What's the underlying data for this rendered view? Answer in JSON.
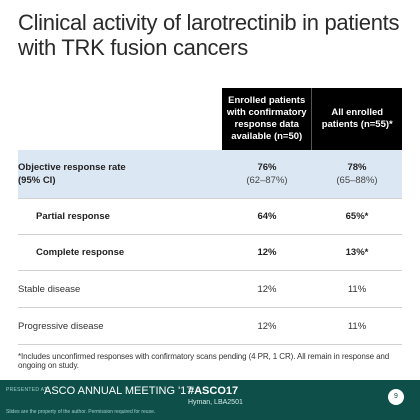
{
  "slide": {
    "title": "Clinical activity of larotrectinib in patients with TRK fusion cancers"
  },
  "table": {
    "columns": [
      "Enrolled patients with confirmatory response data available (n=50)",
      "All enrolled patients (n=55)*"
    ],
    "orr": {
      "label_line1": "Objective response rate",
      "label_line2": "(95% CI)",
      "col1_value": "76%",
      "col1_ci": "(62–87%)",
      "col2_value": "78%",
      "col2_ci": "(65–88%)"
    },
    "rows": [
      {
        "label": "Partial response",
        "col1": "64%",
        "col2": "65%*"
      },
      {
        "label": "Complete response",
        "col1": "12%",
        "col2": "13%*"
      },
      {
        "label": "Stable disease",
        "col1": "12%",
        "col2": "11%"
      },
      {
        "label": "Progressive disease",
        "col1": "12%",
        "col2": "11%"
      }
    ]
  },
  "footnote": "*Includes unconfirmed responses with confirmatory scans pending (4 PR, 1 CR). All remain in response and ongoing on study.",
  "footer": {
    "presented_at": "PRESENTED AT:",
    "meeting": "ASCO ANNUAL MEETING '17",
    "hashtag": "#ASCO17",
    "presenter": "Hyman, LBA2501",
    "disclaimer": "Slides are the property of the author. Permission required for reuse.",
    "logo_text": "9"
  }
}
